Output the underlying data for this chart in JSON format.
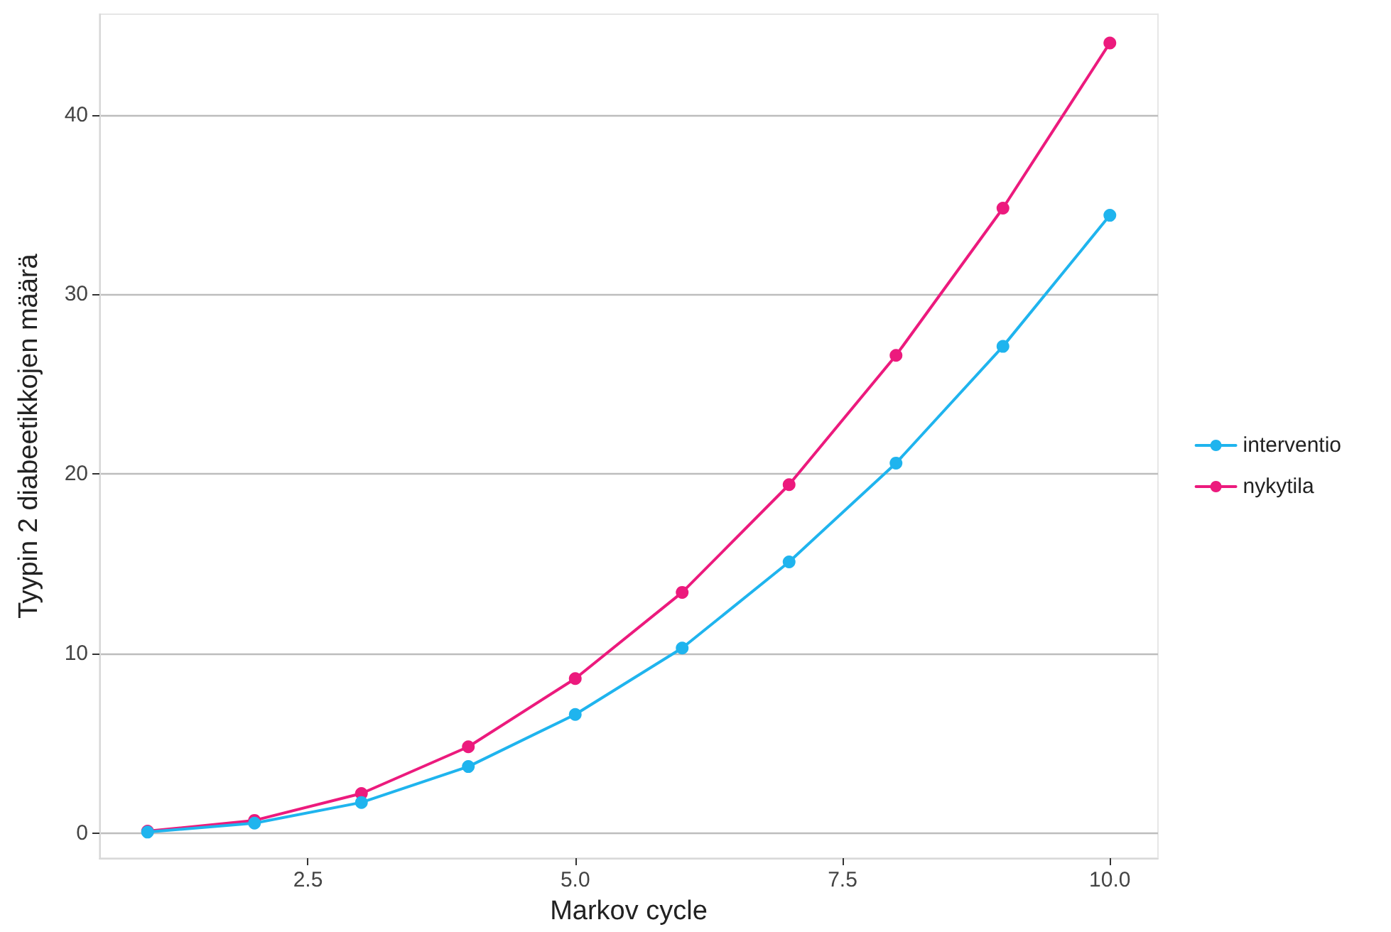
{
  "chart_data": {
    "type": "line",
    "xlabel": "Markov cycle",
    "ylabel": "Tyypin 2 diabeetikkojen määrä",
    "x": [
      1,
      2,
      3,
      4,
      5,
      6,
      7,
      8,
      9,
      10
    ],
    "series": [
      {
        "name": "interventio",
        "color": "#1fb4ee",
        "values": [
          0.05,
          0.55,
          1.7,
          3.7,
          6.6,
          10.3,
          15.1,
          20.6,
          27.1,
          34.4
        ]
      },
      {
        "name": "nykytila",
        "color": "#ec1a7d",
        "values": [
          0.1,
          0.7,
          2.2,
          4.8,
          8.6,
          13.4,
          19.4,
          26.6,
          34.8,
          44.0
        ]
      }
    ],
    "xlim": [
      0.55,
      10.45
    ],
    "xticks": [
      {
        "value": 2.5,
        "label": "2.5"
      },
      {
        "value": 5,
        "label": "5.0"
      },
      {
        "value": 7.5,
        "label": "7.5"
      },
      {
        "value": 10,
        "label": "10.0"
      }
    ],
    "ylim": [
      -1.4,
      45.6
    ],
    "yticks": [
      0,
      10,
      20,
      30,
      40
    ],
    "grid": "y",
    "legend": "right",
    "marker": "circle",
    "line_style": "solid"
  }
}
